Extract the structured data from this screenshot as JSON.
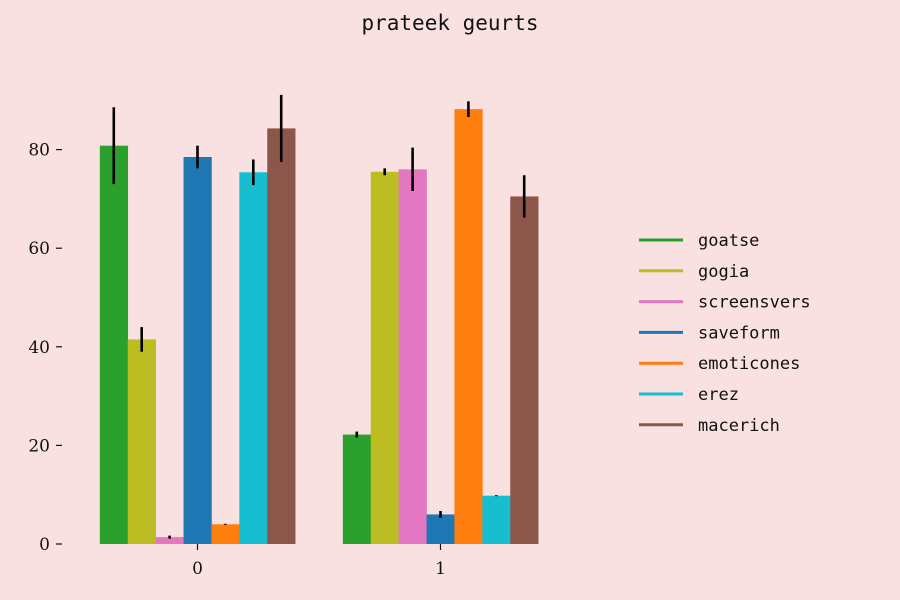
{
  "chart_data": {
    "type": "bar",
    "title": "prateek geurts",
    "xlabel": "",
    "ylabel": "",
    "categories": [
      "0",
      "1"
    ],
    "ylim": [
      0,
      95
    ],
    "yticks": [
      0,
      20,
      40,
      60,
      80
    ],
    "grid": false,
    "legend_position": "right",
    "series": [
      {
        "name": "goatse",
        "color": "#2ca02c",
        "values": [
          80.8,
          22.2
        ],
        "errors": [
          7.8,
          0.6
        ]
      },
      {
        "name": "gogia",
        "color": "#bcbd22",
        "values": [
          41.5,
          75.5
        ],
        "errors": [
          2.5,
          0.7
        ]
      },
      {
        "name": "screensvers",
        "color": "#e377c2",
        "values": [
          1.4,
          76.0
        ],
        "errors": [
          0.3,
          4.4
        ]
      },
      {
        "name": "saveform",
        "color": "#1f77b4",
        "values": [
          78.5,
          6.0
        ],
        "errors": [
          2.3,
          0.7
        ]
      },
      {
        "name": "emoticones",
        "color": "#ff7f0e",
        "values": [
          4.0,
          88.2
        ],
        "errors": [
          0.1,
          1.6
        ]
      },
      {
        "name": "erez",
        "color": "#17becf",
        "values": [
          75.4,
          9.8
        ],
        "errors": [
          2.6,
          0.1
        ]
      },
      {
        "name": "macerich",
        "color": "#8c564b",
        "values": [
          84.3,
          70.5
        ],
        "errors": [
          6.8,
          4.3
        ]
      }
    ]
  }
}
